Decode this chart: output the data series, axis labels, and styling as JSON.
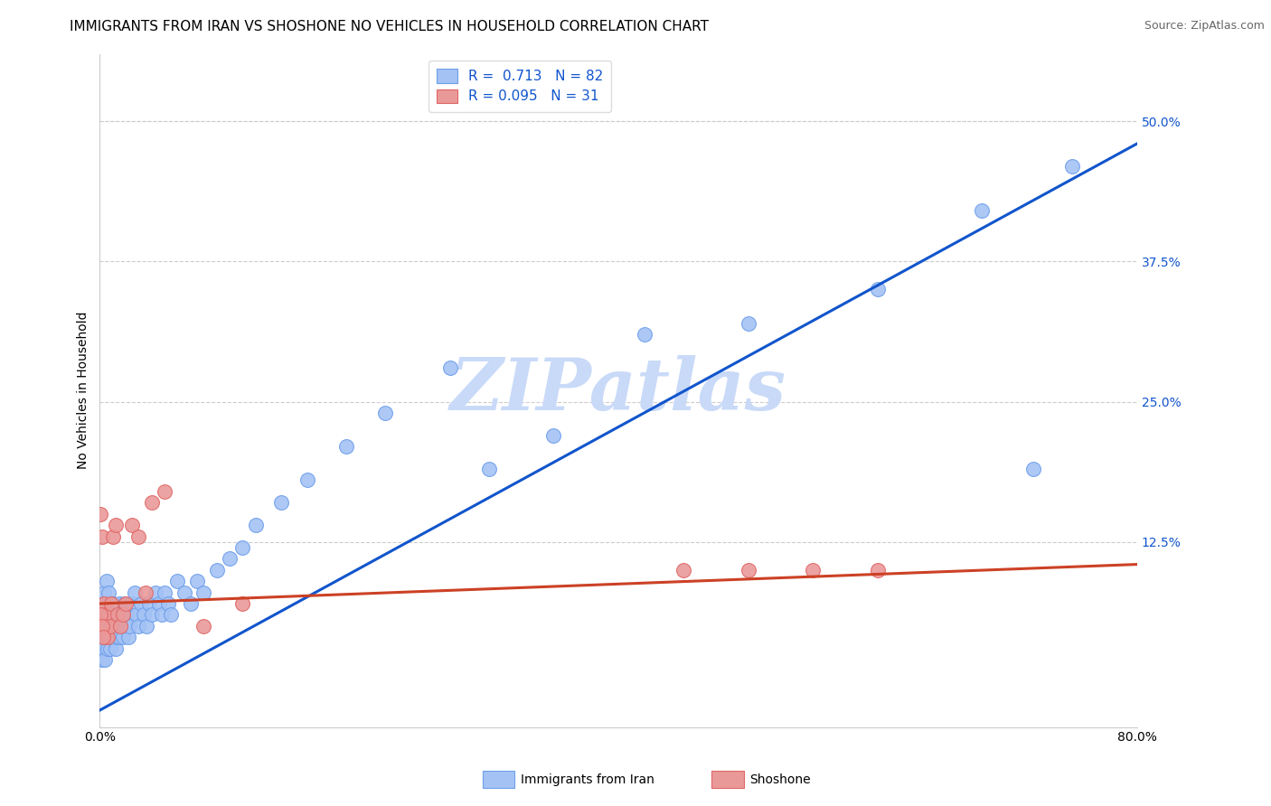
{
  "title": "IMMIGRANTS FROM IRAN VS SHOSHONE NO VEHICLES IN HOUSEHOLD CORRELATION CHART",
  "source": "Source: ZipAtlas.com",
  "ylabel": "No Vehicles in Household",
  "legend_label1": "Immigrants from Iran",
  "legend_label2": "Shoshone",
  "legend_r1": "R =  0.713",
  "legend_n1": "N = 82",
  "legend_r2": "R = 0.095",
  "legend_n2": "N = 31",
  "color_blue": "#a4c2f4",
  "color_blue_edge": "#6d9eeb",
  "color_pink": "#ea9999",
  "color_pink_edge": "#e06666",
  "color_trendline_blue": "#1155cc",
  "color_trendline_pink": "#cc4125",
  "watermark": "ZIPatlas",
  "watermark_color": "#c9daf8",
  "xlim": [
    0.0,
    0.8
  ],
  "ylim": [
    -0.04,
    0.56
  ],
  "blue_scatter_x": [
    0.0005,
    0.001,
    0.001,
    0.0015,
    0.002,
    0.002,
    0.002,
    0.003,
    0.003,
    0.003,
    0.003,
    0.004,
    0.004,
    0.004,
    0.005,
    0.005,
    0.005,
    0.006,
    0.006,
    0.007,
    0.007,
    0.007,
    0.008,
    0.008,
    0.009,
    0.009,
    0.01,
    0.01,
    0.011,
    0.011,
    0.012,
    0.012,
    0.013,
    0.013,
    0.014,
    0.015,
    0.015,
    0.016,
    0.017,
    0.018,
    0.019,
    0.02,
    0.021,
    0.022,
    0.023,
    0.025,
    0.027,
    0.028,
    0.03,
    0.032,
    0.034,
    0.036,
    0.038,
    0.04,
    0.043,
    0.046,
    0.048,
    0.05,
    0.053,
    0.055,
    0.06,
    0.065,
    0.07,
    0.075,
    0.08,
    0.09,
    0.1,
    0.11,
    0.12,
    0.14,
    0.16,
    0.19,
    0.22,
    0.27,
    0.3,
    0.35,
    0.42,
    0.5,
    0.6,
    0.68,
    0.72,
    0.75
  ],
  "blue_scatter_y": [
    0.05,
    0.03,
    0.06,
    0.04,
    0.05,
    0.07,
    0.02,
    0.04,
    0.06,
    0.08,
    0.03,
    0.05,
    0.07,
    0.02,
    0.04,
    0.06,
    0.09,
    0.05,
    0.03,
    0.06,
    0.04,
    0.08,
    0.05,
    0.03,
    0.06,
    0.04,
    0.07,
    0.05,
    0.04,
    0.06,
    0.05,
    0.03,
    0.06,
    0.04,
    0.05,
    0.07,
    0.04,
    0.05,
    0.06,
    0.04,
    0.07,
    0.05,
    0.06,
    0.04,
    0.05,
    0.07,
    0.08,
    0.06,
    0.05,
    0.07,
    0.06,
    0.05,
    0.07,
    0.06,
    0.08,
    0.07,
    0.06,
    0.08,
    0.07,
    0.06,
    0.09,
    0.08,
    0.07,
    0.09,
    0.08,
    0.1,
    0.11,
    0.12,
    0.14,
    0.16,
    0.18,
    0.21,
    0.24,
    0.28,
    0.19,
    0.22,
    0.31,
    0.32,
    0.35,
    0.42,
    0.19,
    0.46
  ],
  "pink_scatter_x": [
    0.0005,
    0.001,
    0.002,
    0.003,
    0.004,
    0.005,
    0.006,
    0.007,
    0.008,
    0.009,
    0.01,
    0.012,
    0.014,
    0.016,
    0.018,
    0.02,
    0.025,
    0.03,
    0.035,
    0.04,
    0.05,
    0.08,
    0.11,
    0.45,
    0.5,
    0.55,
    0.6,
    0.0003,
    0.0007,
    0.0015,
    0.0025
  ],
  "pink_scatter_y": [
    0.15,
    0.06,
    0.13,
    0.07,
    0.06,
    0.05,
    0.04,
    0.06,
    0.05,
    0.07,
    0.13,
    0.14,
    0.06,
    0.05,
    0.06,
    0.07,
    0.14,
    0.13,
    0.08,
    0.16,
    0.17,
    0.05,
    0.07,
    0.1,
    0.1,
    0.1,
    0.1,
    0.05,
    0.06,
    0.05,
    0.04
  ],
  "blue_trendline_x": [
    0.0,
    0.8
  ],
  "blue_trendline_y": [
    -0.025,
    0.48
  ],
  "pink_trendline_x": [
    0.0,
    0.8
  ],
  "pink_trendline_y": [
    0.07,
    0.105
  ],
  "scatter_size": 130,
  "title_fontsize": 11,
  "axis_fontsize": 10,
  "tick_fontsize": 10,
  "legend_fontsize": 11,
  "source_fontsize": 9,
  "grid_color": "#cccccc",
  "grid_yticks": [
    0.5,
    0.375,
    0.25,
    0.125
  ],
  "right_ytick_labels": [
    "50.0%",
    "37.5%",
    "25.0%",
    "12.5%"
  ],
  "right_tick_color": "#1155cc"
}
